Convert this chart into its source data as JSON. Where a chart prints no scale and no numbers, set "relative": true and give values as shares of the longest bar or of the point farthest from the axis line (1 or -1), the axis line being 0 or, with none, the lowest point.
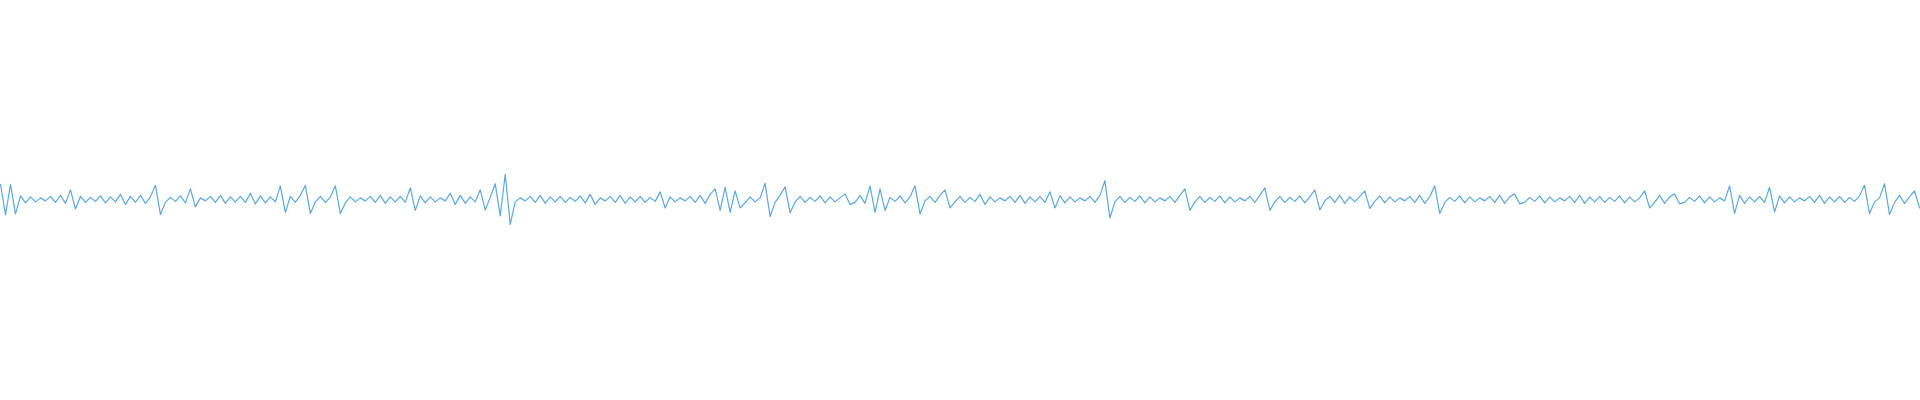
{
  "chart_data": {
    "type": "line",
    "relative": true,
    "color": "#5ba8e0",
    "categories": [
      null,
      null,
      null,
      null,
      null,
      null,
      null,
      null,
      null,
      null,
      null,
      null,
      null,
      null,
      null,
      null,
      null,
      null,
      null,
      null,
      null,
      null,
      null,
      null,
      null,
      null,
      null,
      null,
      null,
      null,
      null,
      null,
      null,
      null,
      null,
      null,
      null,
      null,
      null,
      null,
      null,
      null,
      null,
      null,
      null,
      null,
      null,
      null,
      null,
      null,
      null,
      null,
      null,
      null,
      null,
      null,
      null,
      null,
      null,
      null,
      null,
      null,
      null,
      null,
      null,
      null,
      null,
      null,
      null,
      null,
      null,
      null,
      null,
      null,
      null,
      null,
      null,
      null,
      null,
      null,
      null,
      null,
      null,
      null,
      null,
      null,
      null,
      null,
      null,
      null,
      null,
      null,
      null,
      null,
      null,
      null,
      null,
      null,
      null,
      null,
      null,
      null,
      null,
      null,
      null,
      null,
      null,
      null,
      null,
      null,
      null,
      null,
      null,
      null,
      null,
      null,
      null,
      null,
      null,
      null,
      null,
      null,
      null,
      null,
      null,
      null,
      null,
      null,
      null,
      null,
      null,
      null,
      null,
      null,
      null,
      null,
      null,
      null,
      null,
      null,
      null,
      null,
      null,
      null,
      null,
      null,
      null,
      null,
      null,
      null,
      null,
      null,
      null,
      null,
      null,
      null,
      null,
      null,
      null,
      null,
      null,
      null,
      null,
      null,
      null,
      null,
      null,
      null,
      null,
      null,
      null,
      null,
      null,
      null,
      null,
      null,
      null,
      null,
      null,
      null,
      null,
      null,
      null,
      null,
      null,
      null,
      null,
      null,
      null,
      null,
      null,
      null,
      null,
      null,
      null,
      null,
      null,
      null,
      null,
      null,
      null,
      null,
      null,
      null,
      null,
      null,
      null,
      null,
      null,
      null,
      null,
      null,
      null,
      null,
      null,
      null,
      null,
      null,
      null,
      null,
      null,
      null,
      null,
      null,
      null,
      null,
      null,
      null,
      null,
      null,
      null,
      null,
      null,
      null,
      null,
      null,
      null,
      null,
      null,
      null,
      null,
      null,
      null,
      null,
      null,
      null,
      null,
      null,
      null,
      null,
      null,
      null,
      null,
      null,
      null,
      null,
      null,
      null,
      null,
      null,
      null,
      null,
      null,
      null,
      null,
      null,
      null,
      null,
      null,
      null,
      null,
      null,
      null,
      null,
      null,
      null,
      null,
      null,
      null,
      null,
      null,
      null,
      null,
      null,
      null,
      null,
      null,
      null,
      null,
      null,
      null,
      null,
      null,
      null,
      null,
      null,
      null,
      null,
      null,
      null,
      null,
      null,
      null,
      null,
      null,
      null,
      null,
      null,
      null,
      null,
      null,
      null,
      null,
      null,
      null,
      null,
      null,
      null,
      null,
      null,
      null,
      null,
      null,
      null,
      null,
      null,
      null,
      null,
      null,
      null,
      null,
      null,
      null,
      null,
      null,
      null,
      null,
      null,
      null,
      null,
      null,
      null,
      null,
      null,
      null,
      null,
      null,
      null,
      null,
      null,
      null,
      null,
      null,
      null,
      null,
      null,
      null,
      null,
      null,
      null,
      null,
      null,
      null,
      null,
      null,
      null,
      null,
      null,
      null,
      null,
      null,
      null,
      null,
      null,
      null,
      null,
      null,
      null,
      null,
      null,
      null,
      null,
      null,
      null,
      null
    ],
    "values": [
      0.8,
      0.19,
      0.8,
      0.21,
      0.57,
      0.43,
      0.55,
      0.45,
      0.53,
      0.47,
      0.56,
      0.44,
      0.58,
      0.42,
      0.69,
      0.31,
      0.56,
      0.44,
      0.54,
      0.46,
      0.57,
      0.43,
      0.55,
      0.45,
      0.6,
      0.4,
      0.56,
      0.44,
      0.58,
      0.42,
      0.55,
      0.78,
      0.2,
      0.44,
      0.54,
      0.46,
      0.57,
      0.43,
      0.71,
      0.35,
      0.53,
      0.47,
      0.56,
      0.44,
      0.58,
      0.42,
      0.55,
      0.45,
      0.56,
      0.44,
      0.62,
      0.41,
      0.57,
      0.43,
      0.55,
      0.45,
      0.77,
      0.24,
      0.56,
      0.44,
      0.58,
      0.78,
      0.22,
      0.45,
      0.56,
      0.44,
      0.54,
      0.77,
      0.22,
      0.43,
      0.55,
      0.45,
      0.53,
      0.47,
      0.56,
      0.44,
      0.58,
      0.42,
      0.55,
      0.45,
      0.56,
      0.44,
      0.73,
      0.28,
      0.57,
      0.43,
      0.55,
      0.45,
      0.53,
      0.47,
      0.62,
      0.4,
      0.58,
      0.42,
      0.55,
      0.45,
      0.69,
      0.29,
      0.54,
      0.81,
      0.17,
      1.0,
      0.0,
      0.45,
      0.53,
      0.47,
      0.56,
      0.44,
      0.58,
      0.42,
      0.55,
      0.45,
      0.56,
      0.44,
      0.54,
      0.46,
      0.57,
      0.43,
      0.6,
      0.4,
      0.53,
      0.47,
      0.56,
      0.44,
      0.58,
      0.42,
      0.55,
      0.45,
      0.56,
      0.44,
      0.54,
      0.46,
      0.65,
      0.33,
      0.55,
      0.45,
      0.53,
      0.47,
      0.56,
      0.44,
      0.58,
      0.42,
      0.6,
      0.71,
      0.28,
      0.74,
      0.24,
      0.67,
      0.33,
      0.43,
      0.55,
      0.45,
      0.53,
      0.82,
      0.16,
      0.44,
      0.58,
      0.75,
      0.23,
      0.45,
      0.56,
      0.44,
      0.54,
      0.46,
      0.57,
      0.43,
      0.55,
      0.45,
      0.53,
      0.61,
      0.4,
      0.44,
      0.58,
      0.42,
      0.77,
      0.24,
      0.71,
      0.28,
      0.54,
      0.46,
      0.57,
      0.43,
      0.55,
      0.77,
      0.21,
      0.47,
      0.56,
      0.44,
      0.58,
      0.69,
      0.33,
      0.45,
      0.56,
      0.44,
      0.54,
      0.46,
      0.6,
      0.4,
      0.55,
      0.45,
      0.53,
      0.47,
      0.56,
      0.44,
      0.58,
      0.42,
      0.55,
      0.45,
      0.56,
      0.44,
      0.65,
      0.33,
      0.57,
      0.43,
      0.55,
      0.45,
      0.53,
      0.47,
      0.56,
      0.44,
      0.58,
      0.87,
      0.13,
      0.45,
      0.56,
      0.44,
      0.54,
      0.46,
      0.57,
      0.43,
      0.55,
      0.45,
      0.53,
      0.47,
      0.56,
      0.44,
      0.58,
      0.71,
      0.28,
      0.45,
      0.56,
      0.44,
      0.54,
      0.46,
      0.57,
      0.43,
      0.55,
      0.45,
      0.53,
      0.47,
      0.56,
      0.44,
      0.58,
      0.73,
      0.28,
      0.45,
      0.56,
      0.44,
      0.54,
      0.46,
      0.57,
      0.43,
      0.55,
      0.69,
      0.29,
      0.47,
      0.56,
      0.44,
      0.58,
      0.42,
      0.55,
      0.45,
      0.56,
      0.67,
      0.32,
      0.46,
      0.57,
      0.43,
      0.55,
      0.45,
      0.53,
      0.47,
      0.56,
      0.44,
      0.58,
      0.42,
      0.55,
      0.77,
      0.22,
      0.44,
      0.54,
      0.46,
      0.57,
      0.43,
      0.55,
      0.45,
      0.53,
      0.47,
      0.56,
      0.44,
      0.58,
      0.42,
      0.55,
      0.61,
      0.41,
      0.44,
      0.54,
      0.46,
      0.57,
      0.43,
      0.55,
      0.45,
      0.53,
      0.47,
      0.56,
      0.44,
      0.58,
      0.42,
      0.55,
      0.45,
      0.56,
      0.44,
      0.54,
      0.46,
      0.57,
      0.43,
      0.55,
      0.45,
      0.53,
      0.67,
      0.33,
      0.44,
      0.58,
      0.42,
      0.55,
      0.61,
      0.41,
      0.44,
      0.54,
      0.46,
      0.57,
      0.43,
      0.55,
      0.45,
      0.53,
      0.47,
      0.77,
      0.22,
      0.58,
      0.42,
      0.55,
      0.45,
      0.56,
      0.44,
      0.74,
      0.25,
      0.57,
      0.43,
      0.55,
      0.45,
      0.53,
      0.47,
      0.56,
      0.44,
      0.58,
      0.42,
      0.55,
      0.45,
      0.56,
      0.44,
      0.54,
      0.46,
      0.57,
      0.78,
      0.22,
      0.45,
      0.53,
      0.81,
      0.2,
      0.44,
      0.58,
      0.42,
      0.55,
      0.67,
      0.33
    ]
  }
}
